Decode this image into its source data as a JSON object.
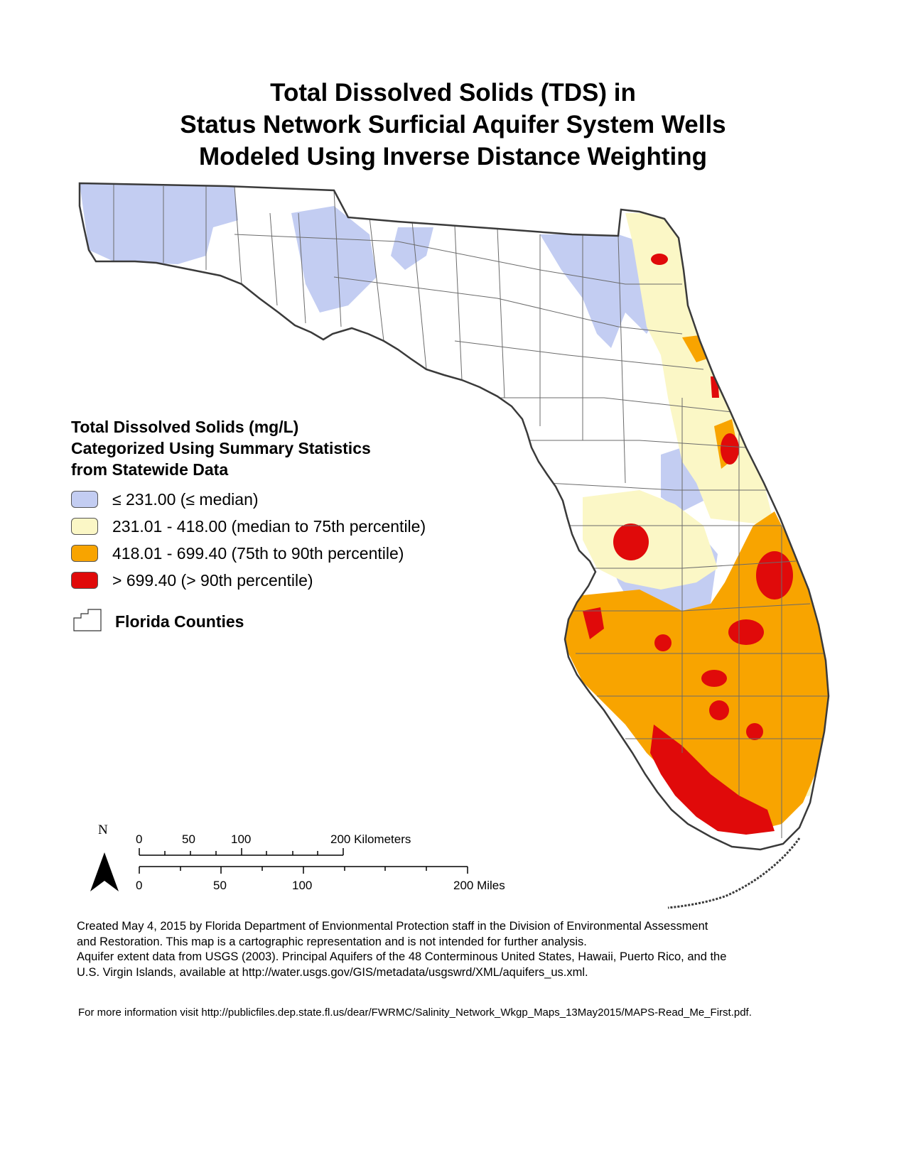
{
  "title": {
    "line1": "Total Dissolved Solids (TDS) in",
    "line2": "Status Network Surficial Aquifer System Wells",
    "line3": "Modeled Using Inverse Distance Weighting"
  },
  "legend": {
    "heading_line1": "Total Dissolved Solids (mg/L)",
    "heading_line2": "Categorized Using Summary Statistics",
    "heading_line3": "from Statewide Data",
    "classes": [
      {
        "label": "≤ 231.00 (≤ median)",
        "color": "#c3cdf2"
      },
      {
        "label": "231.01 - 418.00 (median to 75th percentile)",
        "color": "#fbf7c6"
      },
      {
        "label": "418.01 - 699.40 (75th to 90th percentile)",
        "color": "#f8a400"
      },
      {
        "label": "> 699.40 (> 90th percentile)",
        "color": "#e00a0a"
      }
    ],
    "counties_label": "Florida Counties"
  },
  "north_arrow": {
    "label": "N"
  },
  "scale_bar": {
    "km_ticks": [
      "0",
      "50",
      "100"
    ],
    "km_end": "200 Kilometers",
    "mi_ticks": [
      "0",
      "50",
      "100"
    ],
    "mi_end": "200 Miles"
  },
  "credits": {
    "line1": "Created May 4, 2015 by Florida Department of Envionmental Protection staff in the Division of Environmental Assessment",
    "line2": "and Restoration.  This map is a cartographic representation and is not intended for further analysis.",
    "line3": "Aquifer extent data from USGS (2003). Principal Aquifers of the 48 Conterminous United States, Hawaii, Puerto Rico, and the",
    "line4": "U.S. Virgin Islands, available at http://water.usgs.gov/GIS/metadata/usgswrd/XML/aquifers_us.xml."
  },
  "more_info": "For more information visit http://publicfiles.dep.state.fl.us/dear/FWRMC/Salinity_Network_Wkgp_Maps_13May2015/MAPS-Read_Me_First.pdf."
}
